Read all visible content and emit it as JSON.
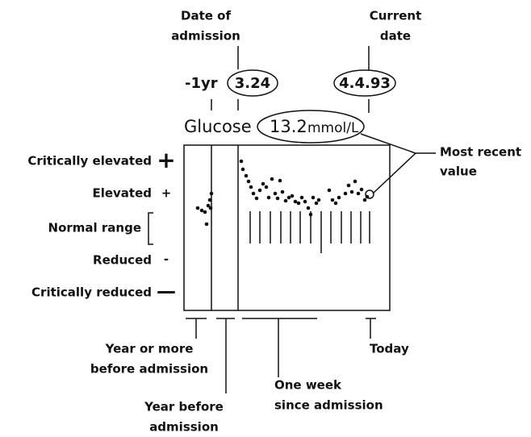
{
  "header": {
    "date_of_admission": [
      "Date of",
      "admission"
    ],
    "current_date": [
      "Current",
      "date"
    ],
    "previous": "-1yr",
    "admission_date": "3.24",
    "today_date": "4.4.93"
  },
  "measure": {
    "name": "Glucose",
    "value": "13.2",
    "unit": "mmol/L"
  },
  "callout": [
    "Most recent",
    "value"
  ],
  "scale": [
    {
      "label": "Critically elevated",
      "symbol": "+"
    },
    {
      "label": "Elevated",
      "symbol": "+"
    },
    {
      "label": "Normal range"
    },
    {
      "label": "Reduced",
      "symbol": "-"
    },
    {
      "label": "Critically reduced",
      "symbol": "—"
    }
  ],
  "footer": {
    "year_or_more": [
      "Year or more",
      "before admission"
    ],
    "year_before": [
      "Year before",
      "admission"
    ],
    "one_week": [
      "One week",
      "since admission"
    ],
    "today": "Today"
  }
}
